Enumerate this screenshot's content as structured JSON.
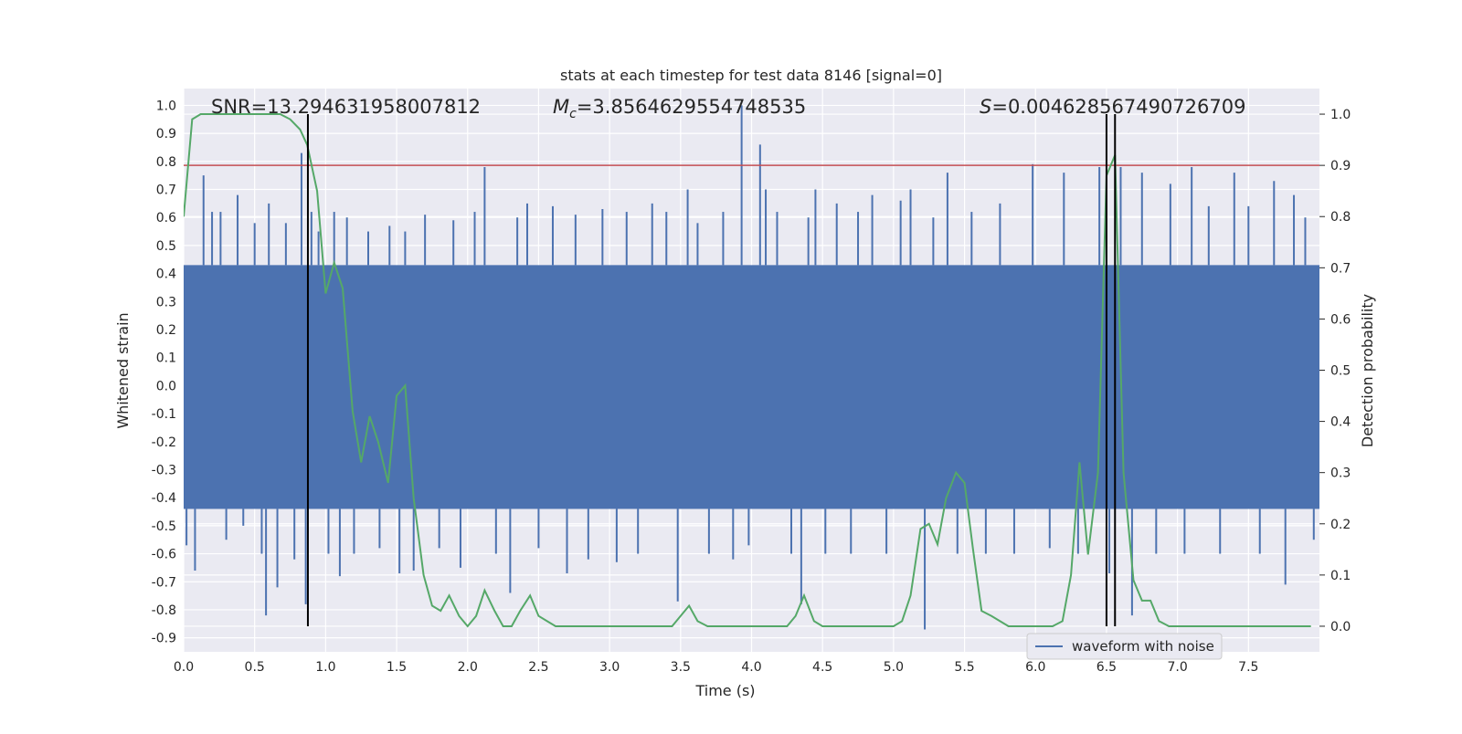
{
  "chart_data": {
    "type": "line",
    "title": "stats at each timestep for test data 8146 [signal=0]",
    "xlabel": "Time (s)",
    "ylabel": "Whitened strain",
    "y2label": "Detection probability",
    "xlim": [
      0.0,
      8.0
    ],
    "ylim": [
      -0.95,
      1.06
    ],
    "y2lim": [
      -0.05,
      1.05
    ],
    "xticks": [
      "0.0",
      "0.5",
      "1.0",
      "1.5",
      "2.0",
      "2.5",
      "3.0",
      "3.5",
      "4.0",
      "4.5",
      "5.0",
      "5.5",
      "6.0",
      "6.5",
      "7.0",
      "7.5"
    ],
    "yticks": [
      "1.0",
      "0.9",
      "0.8",
      "0.7",
      "0.6",
      "0.5",
      "0.4",
      "0.3",
      "0.2",
      "0.1",
      "0.0",
      "-0.1",
      "-0.2",
      "-0.3",
      "-0.4",
      "-0.5",
      "-0.6",
      "-0.7",
      "-0.8",
      "-0.9"
    ],
    "y2ticks": [
      "1.0",
      "0.9",
      "0.8",
      "0.7",
      "0.6",
      "0.5",
      "0.4",
      "0.3",
      "0.2",
      "0.1",
      "0.0"
    ],
    "grid": true,
    "legend": {
      "position": "bottom-right",
      "entries": [
        "waveform with noise"
      ]
    },
    "annotations": {
      "snr": "SNR=13.294631958007812",
      "mc_prefix": "M",
      "mc_sub": "c",
      "mc_value": "=3.8564629554748535",
      "s_prefix": "S",
      "s_value": "=0.004628567490726709"
    },
    "threshold": {
      "y": 0.9,
      "axis": "y2",
      "color": "#c44e52"
    },
    "vlines": [
      0.875,
      6.5,
      6.56
    ],
    "series": [
      {
        "name": "waveform with noise",
        "axis": "y",
        "color": "#4c72b0",
        "band": {
          "upper": 0.43,
          "lower": -0.44
        },
        "spikes": [
          [
            0.02,
            -0.57
          ],
          [
            0.08,
            -0.66
          ],
          [
            0.14,
            0.75
          ],
          [
            0.2,
            0.62
          ],
          [
            0.26,
            0.62
          ],
          [
            0.3,
            -0.55
          ],
          [
            0.38,
            0.68
          ],
          [
            0.42,
            -0.5
          ],
          [
            0.5,
            0.58
          ],
          [
            0.55,
            -0.6
          ],
          [
            0.58,
            -0.82
          ],
          [
            0.6,
            0.65
          ],
          [
            0.66,
            -0.72
          ],
          [
            0.72,
            0.58
          ],
          [
            0.78,
            -0.62
          ],
          [
            0.83,
            0.83
          ],
          [
            0.86,
            -0.78
          ],
          [
            0.9,
            0.62
          ],
          [
            0.95,
            0.55
          ],
          [
            1.02,
            -0.6
          ],
          [
            1.06,
            0.62
          ],
          [
            1.1,
            -0.68
          ],
          [
            1.15,
            0.6
          ],
          [
            1.2,
            -0.6
          ],
          [
            1.3,
            0.55
          ],
          [
            1.38,
            -0.58
          ],
          [
            1.45,
            0.57
          ],
          [
            1.52,
            -0.67
          ],
          [
            1.56,
            0.55
          ],
          [
            1.62,
            -0.66
          ],
          [
            1.7,
            0.61
          ],
          [
            1.8,
            -0.58
          ],
          [
            1.9,
            0.59
          ],
          [
            1.95,
            -0.65
          ],
          [
            2.05,
            0.62
          ],
          [
            2.12,
            0.78
          ],
          [
            2.2,
            -0.6
          ],
          [
            2.3,
            -0.74
          ],
          [
            2.35,
            0.6
          ],
          [
            2.42,
            0.65
          ],
          [
            2.5,
            -0.58
          ],
          [
            2.6,
            0.64
          ],
          [
            2.7,
            -0.67
          ],
          [
            2.76,
            0.61
          ],
          [
            2.85,
            -0.62
          ],
          [
            2.95,
            0.63
          ],
          [
            3.05,
            -0.63
          ],
          [
            3.12,
            0.62
          ],
          [
            3.2,
            -0.6
          ],
          [
            3.3,
            0.65
          ],
          [
            3.4,
            0.62
          ],
          [
            3.48,
            -0.77
          ],
          [
            3.55,
            0.7
          ],
          [
            3.62,
            0.58
          ],
          [
            3.7,
            -0.6
          ],
          [
            3.8,
            0.62
          ],
          [
            3.87,
            -0.62
          ],
          [
            3.93,
            1.0
          ],
          [
            3.98,
            -0.57
          ],
          [
            4.06,
            0.86
          ],
          [
            4.1,
            0.7
          ],
          [
            4.18,
            0.62
          ],
          [
            4.28,
            -0.6
          ],
          [
            4.35,
            -0.78
          ],
          [
            4.4,
            0.6
          ],
          [
            4.45,
            0.7
          ],
          [
            4.52,
            -0.6
          ],
          [
            4.6,
            0.65
          ],
          [
            4.7,
            -0.6
          ],
          [
            4.75,
            0.62
          ],
          [
            4.85,
            0.68
          ],
          [
            4.95,
            -0.6
          ],
          [
            5.05,
            0.66
          ],
          [
            5.12,
            0.7
          ],
          [
            5.22,
            -0.87
          ],
          [
            5.28,
            0.6
          ],
          [
            5.38,
            0.76
          ],
          [
            5.45,
            -0.6
          ],
          [
            5.55,
            0.62
          ],
          [
            5.65,
            -0.6
          ],
          [
            5.75,
            0.65
          ],
          [
            5.85,
            -0.6
          ],
          [
            5.98,
            0.79
          ],
          [
            6.1,
            -0.58
          ],
          [
            6.2,
            0.76
          ],
          [
            6.3,
            -0.6
          ],
          [
            6.45,
            0.78
          ],
          [
            6.52,
            -0.67
          ],
          [
            6.6,
            0.78
          ],
          [
            6.68,
            -0.82
          ],
          [
            6.75,
            0.76
          ],
          [
            6.85,
            -0.6
          ],
          [
            6.95,
            0.72
          ],
          [
            7.05,
            -0.6
          ],
          [
            7.1,
            0.78
          ],
          [
            7.22,
            0.64
          ],
          [
            7.3,
            -0.6
          ],
          [
            7.4,
            0.76
          ],
          [
            7.5,
            0.64
          ],
          [
            7.58,
            -0.6
          ],
          [
            7.68,
            0.73
          ],
          [
            7.76,
            -0.71
          ],
          [
            7.82,
            0.68
          ],
          [
            7.9,
            0.6
          ],
          [
            7.96,
            -0.55
          ]
        ]
      },
      {
        "name": "",
        "axis": "y2",
        "color": "#55a868",
        "x": [
          0.0,
          0.06,
          0.12,
          0.2,
          0.3,
          0.4,
          0.5,
          0.6,
          0.68,
          0.75,
          0.82,
          0.87,
          0.94,
          1.0,
          1.06,
          1.12,
          1.19,
          1.25,
          1.31,
          1.37,
          1.44,
          1.5,
          1.56,
          1.62,
          1.69,
          1.75,
          1.81,
          1.87,
          1.94,
          2.0,
          2.06,
          2.12,
          2.19,
          2.25,
          2.31,
          2.37,
          2.44,
          2.5,
          2.56,
          2.62,
          2.69,
          2.75,
          2.81,
          2.87,
          2.94,
          3.0,
          3.06,
          3.12,
          3.19,
          3.25,
          3.31,
          3.37,
          3.44,
          3.5,
          3.56,
          3.62,
          3.69,
          3.75,
          3.81,
          3.87,
          3.94,
          4.0,
          4.06,
          4.12,
          4.19,
          4.25,
          4.31,
          4.37,
          4.44,
          4.5,
          4.56,
          4.62,
          4.69,
          4.75,
          4.81,
          4.87,
          4.94,
          5.0,
          5.06,
          5.12,
          5.19,
          5.25,
          5.31,
          5.37,
          5.44,
          5.5,
          5.56,
          5.62,
          5.69,
          5.75,
          5.81,
          5.87,
          5.94,
          6.0,
          6.06,
          6.12,
          6.19,
          6.25,
          6.31,
          6.37,
          6.44,
          6.5,
          6.56,
          6.62,
          6.69,
          6.75,
          6.81,
          6.87,
          6.94,
          7.0,
          7.06,
          7.12,
          7.19,
          7.25,
          7.31,
          7.37,
          7.44,
          7.5,
          7.56,
          7.62,
          7.69,
          7.75,
          7.81,
          7.87,
          7.94
        ],
        "y": [
          0.8,
          0.99,
          1.0,
          1.0,
          1.0,
          1.0,
          1.0,
          1.0,
          1.0,
          0.99,
          0.97,
          0.94,
          0.85,
          0.65,
          0.71,
          0.66,
          0.42,
          0.32,
          0.41,
          0.36,
          0.28,
          0.45,
          0.47,
          0.25,
          0.1,
          0.04,
          0.03,
          0.06,
          0.02,
          0.0,
          0.02,
          0.07,
          0.03,
          0.0,
          0.0,
          0.03,
          0.06,
          0.02,
          0.01,
          0.0,
          0.0,
          0.0,
          0.0,
          0.0,
          0.0,
          0.0,
          0.0,
          0.0,
          0.0,
          0.0,
          0.0,
          0.0,
          0.0,
          0.02,
          0.04,
          0.01,
          0.0,
          0.0,
          0.0,
          0.0,
          0.0,
          0.0,
          0.0,
          0.0,
          0.0,
          0.0,
          0.02,
          0.06,
          0.01,
          0.0,
          0.0,
          0.0,
          0.0,
          0.0,
          0.0,
          0.0,
          0.0,
          0.0,
          0.01,
          0.06,
          0.19,
          0.2,
          0.16,
          0.25,
          0.3,
          0.28,
          0.15,
          0.03,
          0.02,
          0.01,
          0.0,
          0.0,
          0.0,
          0.0,
          0.0,
          0.0,
          0.01,
          0.1,
          0.32,
          0.14,
          0.3,
          0.88,
          0.92,
          0.3,
          0.09,
          0.05,
          0.05,
          0.01,
          0.0,
          0.0,
          0.0,
          0.0,
          0.0,
          0.0,
          0.0,
          0.0,
          0.0,
          0.0,
          0.0,
          0.0,
          0.0,
          0.0,
          0.0,
          0.0,
          0.0
        ]
      }
    ]
  }
}
